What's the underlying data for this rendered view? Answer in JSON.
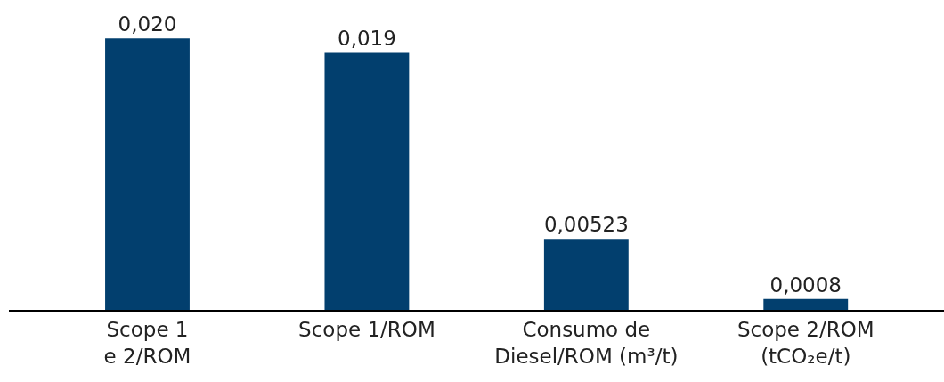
{
  "chart_data": {
    "type": "bar",
    "categories": [
      "Scope 1\ne 2/ROM",
      "Scope 1/ROM",
      "Consumo de\nDiesel/ROM (m³/t)",
      "Scope 2/ROM\n(tCO₂e/t)"
    ],
    "values": [
      0.02,
      0.019,
      0.00523,
      0.0008
    ],
    "value_labels": [
      "0,020",
      "0,019",
      "0,00523",
      "0,0008"
    ],
    "color": "#023f6e",
    "tick_labels": "x"
  }
}
